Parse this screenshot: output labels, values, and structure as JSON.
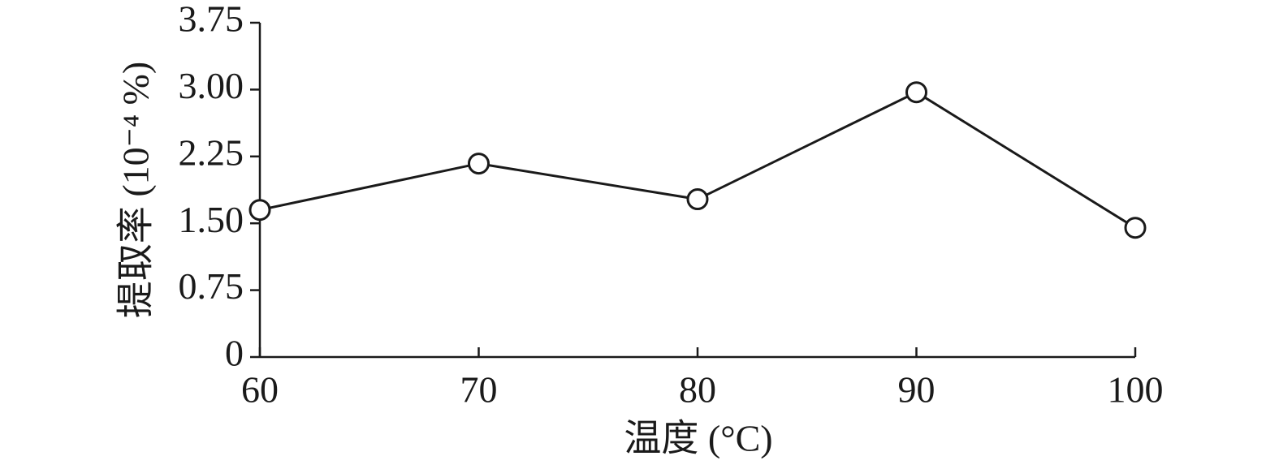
{
  "chart_data": {
    "type": "line",
    "xlabel": "温度 (°C)",
    "ylabel": "提取率 (10⁻⁴ %)",
    "x": [
      60,
      70,
      80,
      90,
      100
    ],
    "series": [
      {
        "color": "#1a1a1a",
        "values": [
          1.65,
          2.17,
          1.77,
          2.97,
          1.45
        ]
      }
    ],
    "xlim": [
      60,
      100
    ],
    "xticks": [
      60,
      70,
      80,
      90,
      100
    ],
    "ylim": [
      0,
      3.75
    ],
    "yticks": [
      0,
      0.75,
      {
        "value": 1.5,
        "label": "1.50"
      },
      2.25,
      {
        "value": 3,
        "label": "3.00"
      },
      3.75
    ],
    "marker": "open-circle"
  }
}
